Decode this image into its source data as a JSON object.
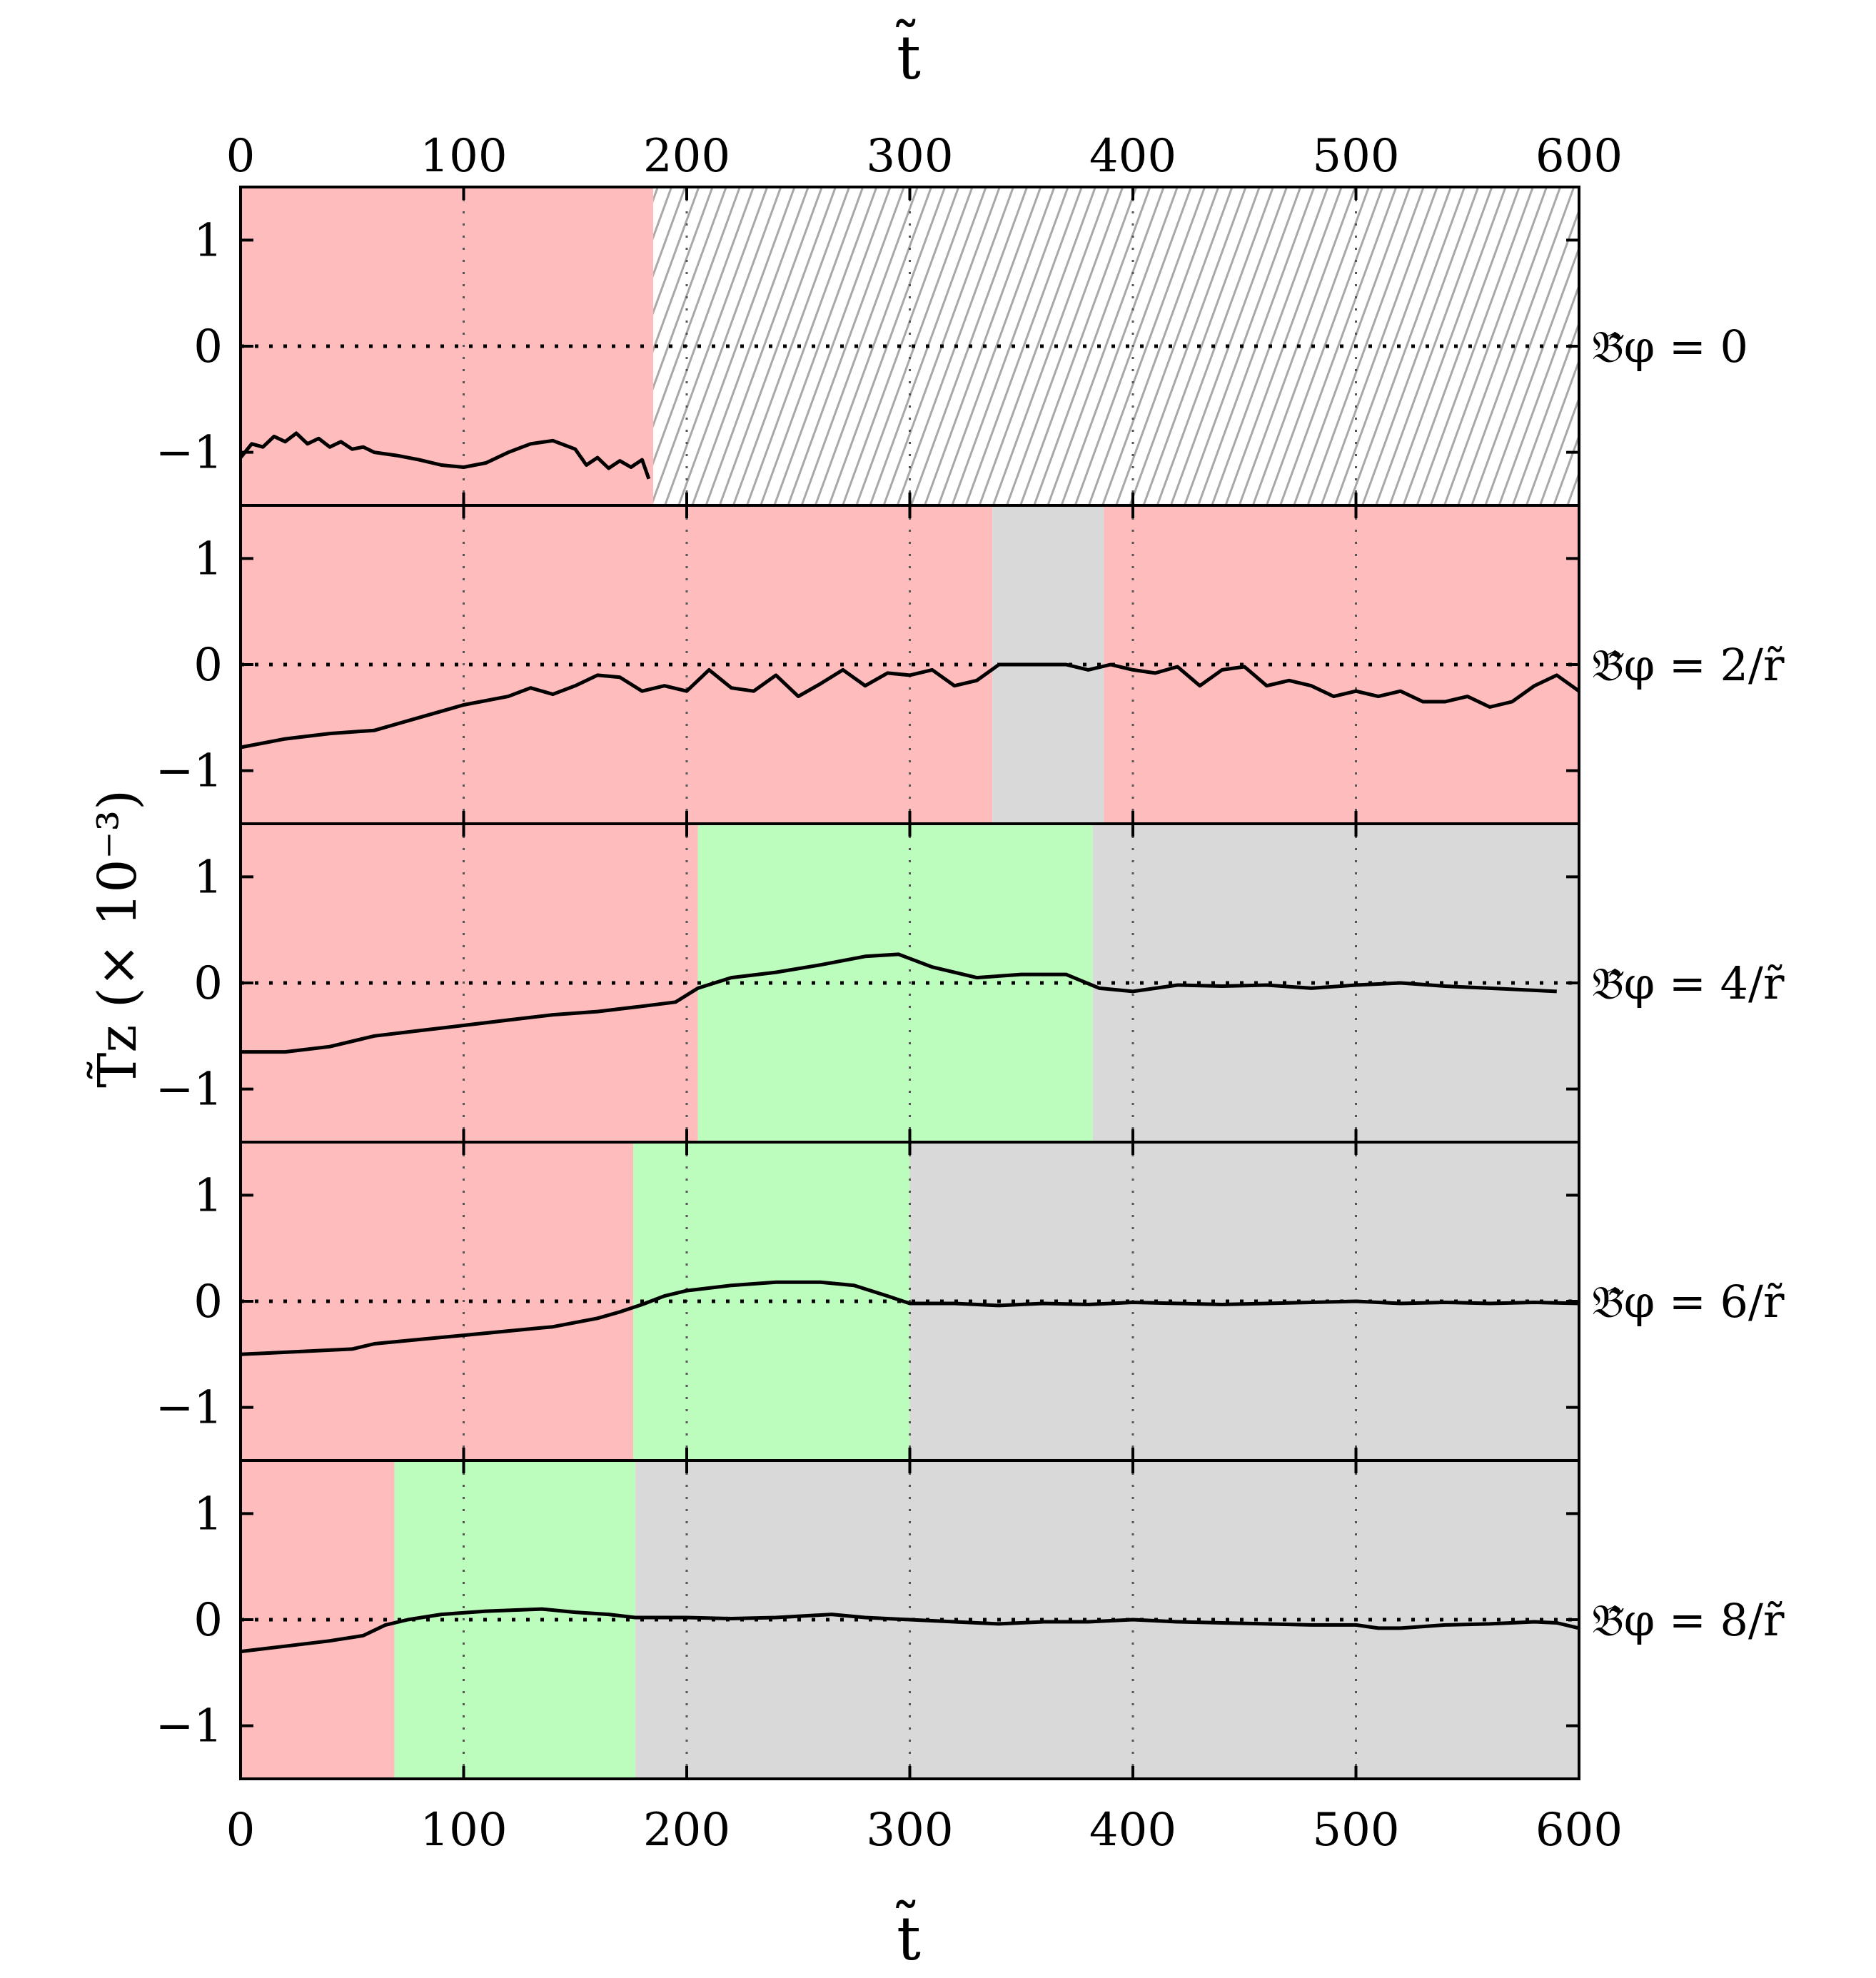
{
  "chart_data": {
    "type": "line",
    "layout": "5 vertically stacked panels sharing the t axis",
    "title": "",
    "xlabel_top": "t̃",
    "xlabel_bottom": "t̃",
    "ylabel": "T̃z (× 10⁻³)",
    "xlim": [
      0,
      600
    ],
    "ylim": [
      -1.5,
      1.5
    ],
    "x_ticks": [
      0,
      100,
      200,
      300,
      400,
      500,
      600
    ],
    "x_tick_labels": [
      "0",
      "100",
      "200",
      "300",
      "400",
      "500",
      "600"
    ],
    "y_ticks": [
      -1,
      0,
      1
    ],
    "y_tick_labels": [
      "−1",
      "0",
      "1"
    ],
    "vertical_gridlines": [
      100,
      200,
      300,
      400,
      500
    ],
    "zero_reference_line": 0,
    "region_colors": {
      "red": "#ffbcbc",
      "green": "#bcfcbc",
      "gray": "#d9d9d9",
      "hatch": "#a8a8a8"
    },
    "line_color": "#000000",
    "panels": [
      {
        "label": "𝔅̃φ = 0",
        "regions": [
          {
            "x0": 0,
            "x1": 185,
            "kind": "red"
          },
          {
            "x0": 185,
            "x1": 600,
            "kind": "hatch"
          }
        ],
        "series": {
          "x": [
            0,
            5,
            10,
            15,
            20,
            25,
            30,
            35,
            40,
            45,
            50,
            55,
            60,
            70,
            80,
            90,
            100,
            110,
            120,
            130,
            140,
            150,
            155,
            160,
            165,
            170,
            175,
            180,
            183
          ],
          "y": [
            -1.05,
            -0.92,
            -0.95,
            -0.85,
            -0.9,
            -0.82,
            -0.92,
            -0.87,
            -0.95,
            -0.9,
            -0.97,
            -0.95,
            -1.0,
            -1.03,
            -1.07,
            -1.12,
            -1.14,
            -1.1,
            -1.0,
            -0.92,
            -0.89,
            -0.97,
            -1.12,
            -1.05,
            -1.15,
            -1.08,
            -1.14,
            -1.07,
            -1.25
          ]
        }
      },
      {
        "label": "𝔅̃φ = 2/r̃",
        "regions": [
          {
            "x0": 0,
            "x1": 337,
            "kind": "red"
          },
          {
            "x0": 337,
            "x1": 387,
            "kind": "gray"
          },
          {
            "x0": 387,
            "x1": 600,
            "kind": "red"
          }
        ],
        "series": {
          "x": [
            0,
            20,
            40,
            60,
            80,
            100,
            120,
            130,
            140,
            150,
            160,
            170,
            180,
            190,
            200,
            210,
            220,
            230,
            240,
            250,
            260,
            270,
            280,
            290,
            300,
            310,
            320,
            330,
            340,
            350,
            360,
            370,
            380,
            390,
            400,
            410,
            420,
            430,
            440,
            450,
            460,
            470,
            480,
            490,
            500,
            510,
            520,
            530,
            540,
            550,
            560,
            570,
            580,
            590,
            600
          ],
          "y": [
            -0.78,
            -0.7,
            -0.65,
            -0.62,
            -0.5,
            -0.38,
            -0.3,
            -0.22,
            -0.28,
            -0.2,
            -0.1,
            -0.12,
            -0.25,
            -0.2,
            -0.25,
            -0.05,
            -0.22,
            -0.25,
            -0.1,
            -0.3,
            -0.18,
            -0.05,
            -0.2,
            -0.08,
            -0.1,
            -0.05,
            -0.2,
            -0.15,
            0.0,
            0.0,
            0.0,
            0.0,
            -0.05,
            0.0,
            -0.05,
            -0.08,
            -0.02,
            -0.2,
            -0.05,
            -0.02,
            -0.2,
            -0.15,
            -0.2,
            -0.3,
            -0.25,
            -0.3,
            -0.25,
            -0.35,
            -0.35,
            -0.3,
            -0.4,
            -0.35,
            -0.2,
            -0.1,
            -0.25
          ]
        }
      },
      {
        "label": "𝔅̃φ = 4/r̃",
        "regions": [
          {
            "x0": 0,
            "x1": 205,
            "kind": "red"
          },
          {
            "x0": 205,
            "x1": 382,
            "kind": "green"
          },
          {
            "x0": 382,
            "x1": 600,
            "kind": "gray"
          }
        ],
        "series": {
          "x": [
            0,
            20,
            40,
            60,
            80,
            100,
            120,
            140,
            160,
            180,
            195,
            205,
            220,
            240,
            260,
            280,
            295,
            310,
            330,
            350,
            370,
            385,
            400,
            420,
            440,
            460,
            480,
            500,
            520,
            540,
            560,
            580,
            590
          ],
          "y": [
            -0.65,
            -0.65,
            -0.6,
            -0.5,
            -0.45,
            -0.4,
            -0.35,
            -0.3,
            -0.27,
            -0.22,
            -0.18,
            -0.05,
            0.05,
            0.1,
            0.17,
            0.25,
            0.27,
            0.15,
            0.05,
            0.08,
            0.08,
            -0.05,
            -0.08,
            -0.02,
            -0.03,
            -0.02,
            -0.05,
            -0.02,
            0.0,
            -0.03,
            -0.05,
            -0.07,
            -0.08
          ]
        }
      },
      {
        "label": "𝔅̃φ = 6/r̃",
        "regions": [
          {
            "x0": 0,
            "x1": 176,
            "kind": "red"
          },
          {
            "x0": 176,
            "x1": 300,
            "kind": "green"
          },
          {
            "x0": 300,
            "x1": 600,
            "kind": "gray"
          }
        ],
        "series": {
          "x": [
            0,
            20,
            40,
            50,
            60,
            80,
            100,
            120,
            140,
            160,
            170,
            180,
            190,
            200,
            220,
            240,
            260,
            275,
            290,
            300,
            320,
            340,
            360,
            380,
            400,
            420,
            440,
            460,
            480,
            500,
            520,
            540,
            560,
            580,
            600
          ],
          "y": [
            -0.5,
            -0.48,
            -0.46,
            -0.45,
            -0.4,
            -0.36,
            -0.32,
            -0.28,
            -0.24,
            -0.16,
            -0.1,
            -0.03,
            0.05,
            0.1,
            0.15,
            0.18,
            0.18,
            0.15,
            0.05,
            -0.02,
            -0.02,
            -0.04,
            -0.02,
            -0.03,
            -0.01,
            -0.02,
            -0.03,
            -0.02,
            -0.01,
            0.0,
            -0.02,
            -0.01,
            -0.02,
            -0.01,
            -0.02
          ]
        }
      },
      {
        "label": "𝔅̃φ = 8/r̃",
        "regions": [
          {
            "x0": 0,
            "x1": 69,
            "kind": "red"
          },
          {
            "x0": 69,
            "x1": 177,
            "kind": "green"
          },
          {
            "x0": 177,
            "x1": 600,
            "kind": "gray"
          }
        ],
        "series": {
          "x": [
            0,
            20,
            40,
            55,
            65,
            75,
            90,
            110,
            135,
            150,
            165,
            177,
            200,
            220,
            240,
            265,
            280,
            300,
            320,
            340,
            360,
            380,
            400,
            420,
            440,
            460,
            480,
            500,
            510,
            520,
            540,
            560,
            580,
            590,
            600
          ],
          "y": [
            -0.3,
            -0.25,
            -0.2,
            -0.15,
            -0.05,
            0.0,
            0.05,
            0.08,
            0.1,
            0.07,
            0.05,
            0.02,
            0.02,
            0.01,
            0.02,
            0.05,
            0.02,
            0.0,
            -0.02,
            -0.04,
            -0.02,
            -0.02,
            0.0,
            -0.02,
            -0.03,
            -0.04,
            -0.05,
            -0.05,
            -0.08,
            -0.08,
            -0.05,
            -0.04,
            -0.02,
            -0.03,
            -0.08
          ]
        }
      }
    ]
  }
}
